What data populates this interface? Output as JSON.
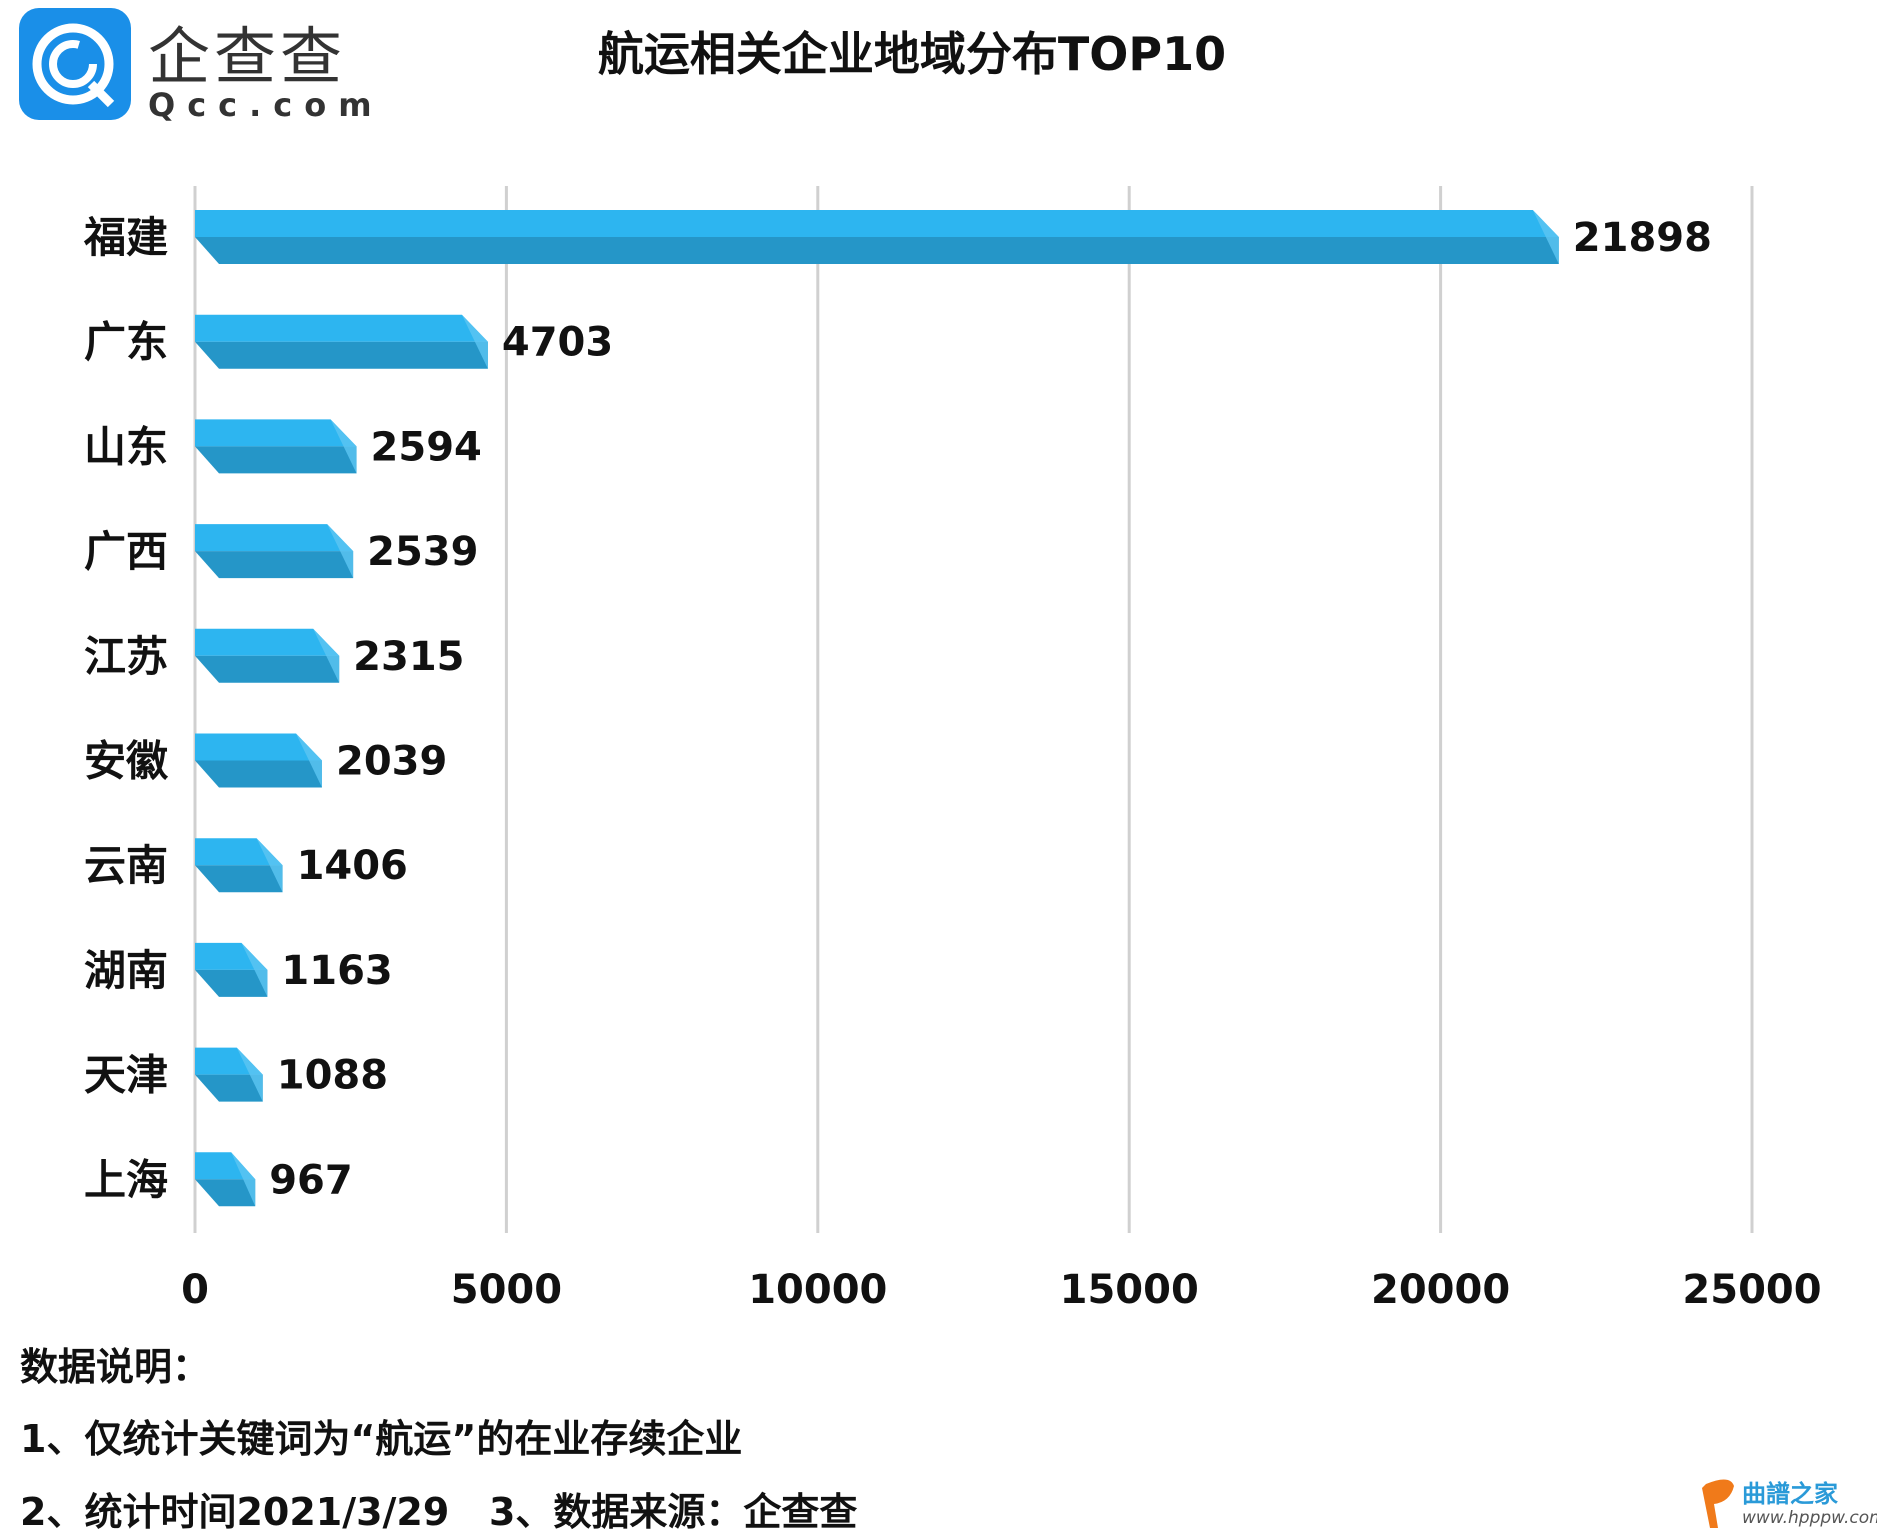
{
  "logo": {
    "cn": "企查查",
    "en": "Qcc.com"
  },
  "colors": {
    "bar_top": "#2db5f0",
    "bar_front": "#2596c8",
    "bar_end": "#5cc6f3",
    "grid": "#d0d0d0",
    "logo": "#1a8fe8"
  },
  "chart_data": {
    "type": "bar",
    "orientation": "horizontal",
    "title": "航运相关企业地域分布TOP10",
    "categories": [
      "福建",
      "广东",
      "山东",
      "广西",
      "江苏",
      "安徽",
      "云南",
      "湖南",
      "天津",
      "上海"
    ],
    "values": [
      21898,
      4703,
      2594,
      2539,
      2315,
      2039,
      1406,
      1163,
      1088,
      967
    ],
    "xlim": [
      0,
      25000
    ],
    "xticks": [
      "0",
      "5000",
      "10000",
      "15000",
      "20000",
      "25000"
    ],
    "grid": true,
    "xlabel": "",
    "ylabel": ""
  },
  "notes": {
    "heading": "数据说明：",
    "line1": "1、仅统计关键词为“航运”的在业存续企业",
    "line2": "2、统计时间2021/3/29   3、数据来源：企查查"
  },
  "watermark": {
    "cn": "曲譜之家",
    "en": "www.hpppw.com"
  }
}
